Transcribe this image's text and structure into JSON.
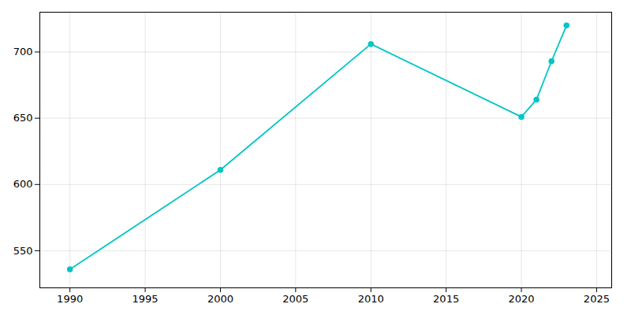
{
  "chart_data": {
    "type": "line",
    "x": [
      1990,
      2000,
      2010,
      2020,
      2021,
      2022,
      2023
    ],
    "values": [
      536,
      611,
      706,
      651,
      664,
      693,
      720
    ],
    "color": "#00C5C5",
    "marker": "circle",
    "xlim": [
      1988,
      2026
    ],
    "ylim": [
      522,
      730
    ],
    "xticks": [
      1990,
      1995,
      2000,
      2005,
      2010,
      2015,
      2020,
      2025
    ],
    "yticks": [
      550,
      600,
      650,
      700
    ],
    "grid": true
  }
}
